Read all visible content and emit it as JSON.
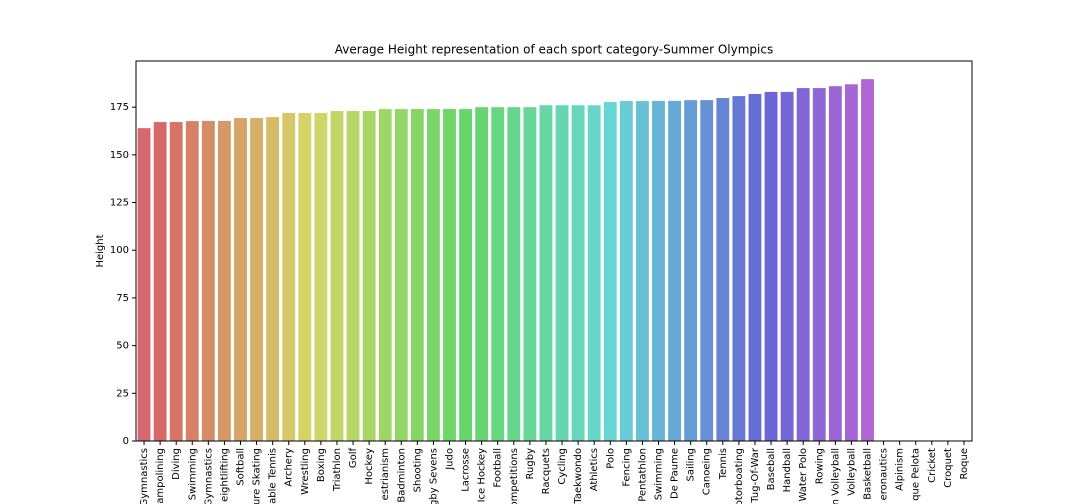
{
  "chart_data": {
    "type": "bar",
    "title": "Average Height representation of each sport category-Summer Olympics",
    "y_label": "Height",
    "categories": [
      "Gymnastics",
      "ampolining",
      "Diving",
      "Swimming",
      "Gymnastics",
      "eightlifting",
      "Softball",
      "ure Skating",
      "able Tennis",
      "Archery",
      "Wrestling",
      "Boxing",
      "Triathlon",
      "Golf",
      "Hockey",
      "estrianism",
      "Badminton",
      "Shooting",
      "gby Sevens",
      "Judo",
      "Lacrosse",
      "Ice Hockey",
      "Football",
      "ompetitions",
      "Rugby",
      "Racquets",
      "Cycling",
      "Taekwondo",
      "Athletics",
      "Polo",
      "Fencing",
      "Pentathlon",
      "Swimming",
      "De Paume",
      "Sailing",
      "Canoeing",
      "Tennis",
      "otorboating",
      "Tug-Of-War",
      "Baseball",
      "Handball",
      "Water Polo",
      "Rowing",
      "n Volleyball",
      "Volleyball",
      "Basketball",
      "eronautics",
      "Alpinism",
      "que Pelota",
      "Cricket",
      "Croquet",
      "Roque"
    ],
    "values": [
      164.0,
      167.2,
      167.2,
      167.7,
      167.8,
      167.8,
      169.3,
      169.3,
      169.8,
      172,
      172,
      172,
      173,
      173,
      173,
      174,
      174,
      174,
      174,
      174,
      174,
      175,
      175,
      175,
      175,
      176,
      176,
      176,
      176,
      177.7,
      178.2,
      178.2,
      178.3,
      178.3,
      178.7,
      178.7,
      179.8,
      180.8,
      181.9,
      183,
      183,
      185,
      185,
      186,
      187,
      189.7,
      null,
      null,
      null,
      null,
      null,
      null
    ],
    "ylim": [
      0,
      199.2
    ],
    "yticks": [
      0,
      25,
      50,
      75,
      100,
      125,
      150,
      175
    ],
    "grid": false
  }
}
